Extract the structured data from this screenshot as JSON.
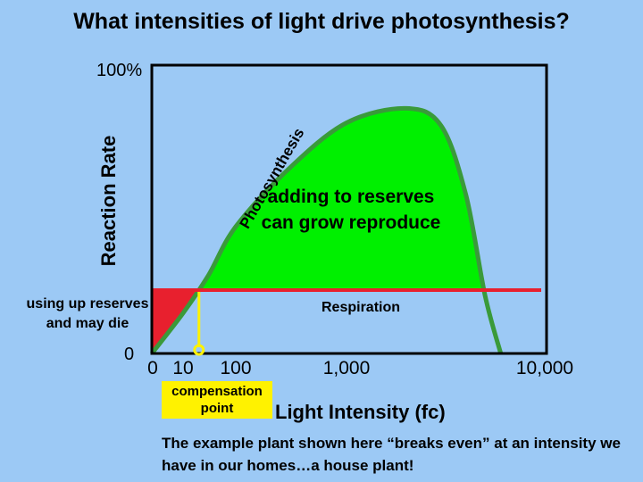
{
  "chart_data": {
    "type": "area",
    "title": "What intensities of light drive photosynthesis?",
    "xlabel": "Light Intensity (fc)",
    "ylabel": "Reaction Rate",
    "x_tick_labels": [
      "0",
      "10",
      "100",
      "1,000",
      "10,000"
    ],
    "y_tick_labels": [
      "0",
      "100%"
    ],
    "series": [
      {
        "name": "Photosynthesis",
        "x": [
          0,
          10,
          30,
          100,
          300,
          1000,
          2000,
          3000,
          4000,
          5000,
          6000
        ],
        "y": [
          0,
          14,
          27,
          44,
          64,
          80,
          85,
          79,
          55,
          20,
          0
        ]
      },
      {
        "name": "Respiration",
        "x": [
          0,
          10000
        ],
        "y": [
          22,
          22
        ]
      }
    ],
    "compensation_point_x": 20,
    "annotations": {
      "gain_region": "adding to reserves can grow reproduce",
      "loss_region": "using up reserves and may die",
      "compensation": "compensation point",
      "caption": "The example plant shown here “breaks even” at an intensity we have in our homes…a house plant!"
    },
    "colors": {
      "background": "#9cc9f5",
      "photosynthesis_fill": "#00f000",
      "photosynthesis_line": "#3a9a3a",
      "respiration": "#e8202e",
      "compensation_marker": "#fff200"
    }
  }
}
